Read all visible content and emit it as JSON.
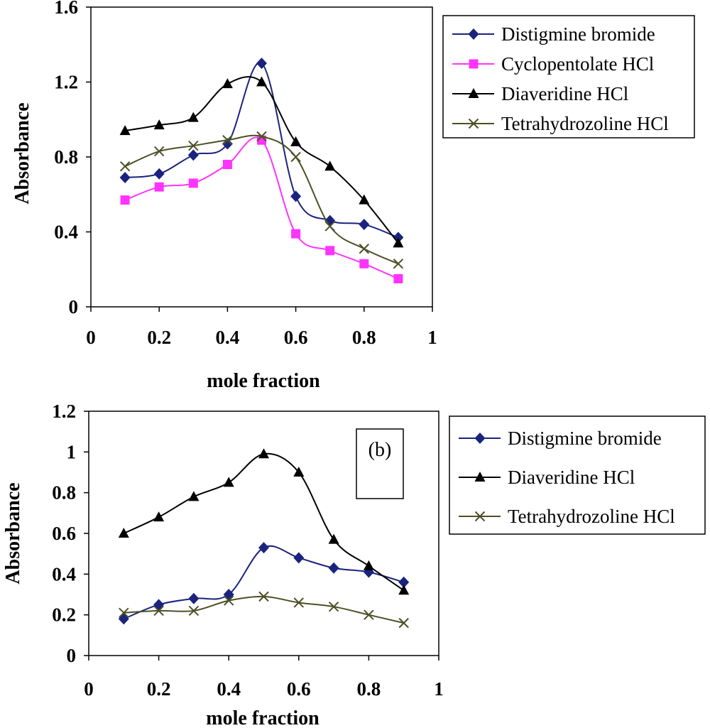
{
  "chart_data": [
    {
      "type": "line",
      "xlabel": "mole fraction",
      "ylabel": "Absorbance",
      "xlim": [
        0,
        1
      ],
      "ylim": [
        0,
        1.6
      ],
      "xticks": [
        "0",
        "0.2",
        "0.4",
        "0.6",
        "0.8",
        "1"
      ],
      "yticks": [
        "0",
        "0.4",
        "0.8",
        "1.2",
        "1.6"
      ],
      "x": [
        0.1,
        0.2,
        0.3,
        0.4,
        0.5,
        0.6,
        0.7,
        0.8,
        0.9
      ],
      "legend_position": "right",
      "series": [
        {
          "name": "Distigmine bromide",
          "color": "#1a237e",
          "marker": "diamond",
          "values": [
            0.69,
            0.71,
            0.81,
            0.87,
            1.3,
            0.59,
            0.46,
            0.44,
            0.37
          ]
        },
        {
          "name": "Cyclopentolate HCl",
          "color": "#ff33ff",
          "marker": "square",
          "values": [
            0.57,
            0.64,
            0.66,
            0.76,
            0.89,
            0.39,
            0.3,
            0.23,
            0.15
          ]
        },
        {
          "name": "Diaveridine HCl",
          "color": "#000000",
          "marker": "triangle",
          "values": [
            0.94,
            0.97,
            1.01,
            1.19,
            1.2,
            0.88,
            0.75,
            0.57,
            0.34
          ]
        },
        {
          "name": "Tetrahydrozoline HCl",
          "color": "#4d5025",
          "marker": "x",
          "values": [
            0.75,
            0.83,
            0.86,
            0.89,
            0.91,
            0.8,
            0.43,
            0.31,
            0.23
          ]
        }
      ]
    },
    {
      "type": "line",
      "xlabel": "mole fraction",
      "ylabel": "Absorbance",
      "annotation": "(b)",
      "xlim": [
        0,
        1
      ],
      "ylim": [
        0,
        1.2
      ],
      "xticks": [
        "0",
        "0.2",
        "0.4",
        "0.6",
        "0.8",
        "1"
      ],
      "yticks": [
        "0",
        "0.2",
        "0.4",
        "0.6",
        "0.8",
        "1",
        "1.2"
      ],
      "x": [
        0.1,
        0.2,
        0.3,
        0.4,
        0.5,
        0.6,
        0.7,
        0.8,
        0.9
      ],
      "legend_position": "right",
      "series": [
        {
          "name": "Distigmine bromide",
          "color": "#1a237e",
          "marker": "diamond",
          "values": [
            0.18,
            0.25,
            0.28,
            0.3,
            0.53,
            0.48,
            0.43,
            0.41,
            0.36
          ]
        },
        {
          "name": "Diaveridine HCl",
          "color": "#000000",
          "marker": "triangle",
          "values": [
            0.6,
            0.68,
            0.78,
            0.85,
            0.99,
            0.9,
            0.57,
            0.44,
            0.32
          ]
        },
        {
          "name": "Tetrahydrozoline HCl",
          "color": "#4d5025",
          "marker": "x",
          "values": [
            0.21,
            0.22,
            0.22,
            0.27,
            0.29,
            0.26,
            0.24,
            0.2,
            0.16
          ]
        }
      ]
    }
  ]
}
